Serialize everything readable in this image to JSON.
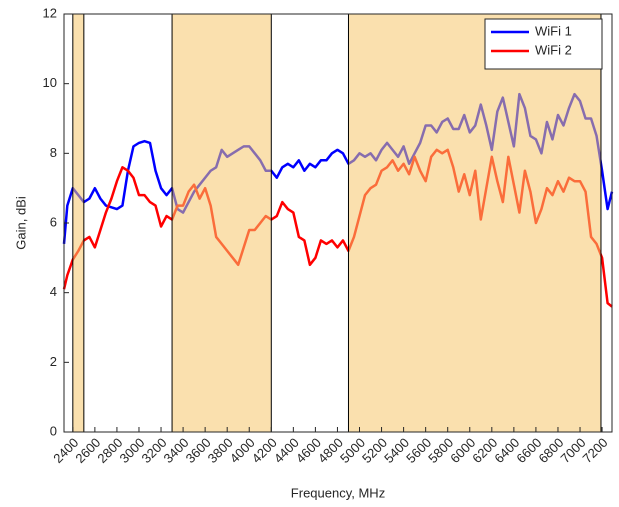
{
  "chart_data": {
    "type": "line",
    "xlabel": "Frequency, MHz",
    "ylabel": "Gain, dBi",
    "xlim": [
      2320,
      7290
    ],
    "ylim": [
      0,
      12
    ],
    "xticks": [
      2400,
      2600,
      2800,
      3000,
      3200,
      3400,
      3600,
      3800,
      4000,
      4200,
      4400,
      4600,
      4800,
      5000,
      5200,
      5400,
      5600,
      5800,
      6000,
      6200,
      6400,
      6600,
      6800,
      7000,
      7200
    ],
    "yticks": [
      0,
      2,
      4,
      6,
      8,
      10,
      12
    ],
    "grid": false,
    "legend": "upper right",
    "bands": [
      [
        2400,
        2500
      ],
      [
        3300,
        4200
      ],
      [
        4900,
        7190
      ]
    ],
    "band_color": "#f5c66b",
    "x": [
      2320,
      2350,
      2400,
      2450,
      2500,
      2550,
      2600,
      2650,
      2700,
      2750,
      2800,
      2850,
      2900,
      2950,
      3000,
      3050,
      3100,
      3150,
      3200,
      3250,
      3300,
      3350,
      3400,
      3450,
      3500,
      3550,
      3600,
      3650,
      3700,
      3750,
      3800,
      3850,
      3900,
      3950,
      4000,
      4050,
      4100,
      4150,
      4200,
      4250,
      4300,
      4350,
      4400,
      4450,
      4500,
      4550,
      4600,
      4650,
      4700,
      4750,
      4800,
      4850,
      4900,
      4950,
      5000,
      5050,
      5100,
      5150,
      5200,
      5250,
      5300,
      5350,
      5400,
      5450,
      5500,
      5550,
      5600,
      5650,
      5700,
      5750,
      5800,
      5850,
      5900,
      5950,
      6000,
      6050,
      6100,
      6150,
      6200,
      6250,
      6300,
      6350,
      6400,
      6450,
      6500,
      6550,
      6600,
      6650,
      6700,
      6750,
      6800,
      6850,
      6900,
      6950,
      7000,
      7050,
      7100,
      7150,
      7200,
      7250,
      7290
    ],
    "series": [
      {
        "name": "WiFi 1",
        "color": "#0000ff",
        "values": [
          5.4,
          6.5,
          7.0,
          6.8,
          6.6,
          6.7,
          7.0,
          6.7,
          6.5,
          6.45,
          6.4,
          6.5,
          7.5,
          8.2,
          8.3,
          8.35,
          8.3,
          7.5,
          7.0,
          6.8,
          7.0,
          6.4,
          6.3,
          6.6,
          6.9,
          7.1,
          7.3,
          7.5,
          7.6,
          8.1,
          7.9,
          8.0,
          8.1,
          8.2,
          8.2,
          8.0,
          7.8,
          7.5,
          7.5,
          7.3,
          7.6,
          7.7,
          7.6,
          7.8,
          7.5,
          7.7,
          7.6,
          7.8,
          7.8,
          8.0,
          8.1,
          8.0,
          7.7,
          7.8,
          8.0,
          7.9,
          8.0,
          7.8,
          8.1,
          8.3,
          8.1,
          7.9,
          8.2,
          7.7,
          8.0,
          8.3,
          8.8,
          8.8,
          8.6,
          8.9,
          9.0,
          8.7,
          8.7,
          9.1,
          8.6,
          8.8,
          9.4,
          8.8,
          8.1,
          9.2,
          9.6,
          8.9,
          8.2,
          9.7,
          9.3,
          8.5,
          8.4,
          8.0,
          8.9,
          8.4,
          9.1,
          8.8,
          9.3,
          9.7,
          9.5,
          9.0,
          9.0,
          8.5,
          7.5,
          6.4,
          6.9
        ]
      },
      {
        "name": "WiFi 2",
        "color": "#ff0000",
        "values": [
          4.1,
          4.5,
          4.95,
          5.2,
          5.5,
          5.6,
          5.3,
          5.8,
          6.3,
          6.7,
          7.2,
          7.6,
          7.5,
          7.3,
          6.8,
          6.8,
          6.6,
          6.5,
          5.9,
          6.2,
          6.1,
          6.5,
          6.5,
          6.9,
          7.1,
          6.7,
          7.0,
          6.5,
          5.6,
          5.4,
          5.2,
          5.0,
          4.8,
          5.3,
          5.8,
          5.8,
          6.0,
          6.2,
          6.1,
          6.2,
          6.6,
          6.4,
          6.3,
          5.6,
          5.5,
          4.8,
          5.0,
          5.5,
          5.4,
          5.5,
          5.3,
          5.5,
          5.2,
          5.6,
          6.2,
          6.8,
          7.0,
          7.1,
          7.5,
          7.6,
          7.8,
          7.5,
          7.7,
          7.4,
          7.9,
          7.5,
          7.2,
          7.9,
          8.1,
          8.0,
          8.1,
          7.6,
          6.9,
          7.4,
          6.8,
          7.5,
          6.1,
          7.0,
          7.9,
          7.2,
          6.6,
          7.9,
          7.1,
          6.3,
          7.5,
          6.9,
          6.0,
          6.4,
          7.0,
          6.8,
          7.2,
          6.9,
          7.3,
          7.2,
          7.2,
          6.9,
          5.6,
          5.4,
          5.0,
          3.7,
          3.6
        ]
      }
    ]
  }
}
